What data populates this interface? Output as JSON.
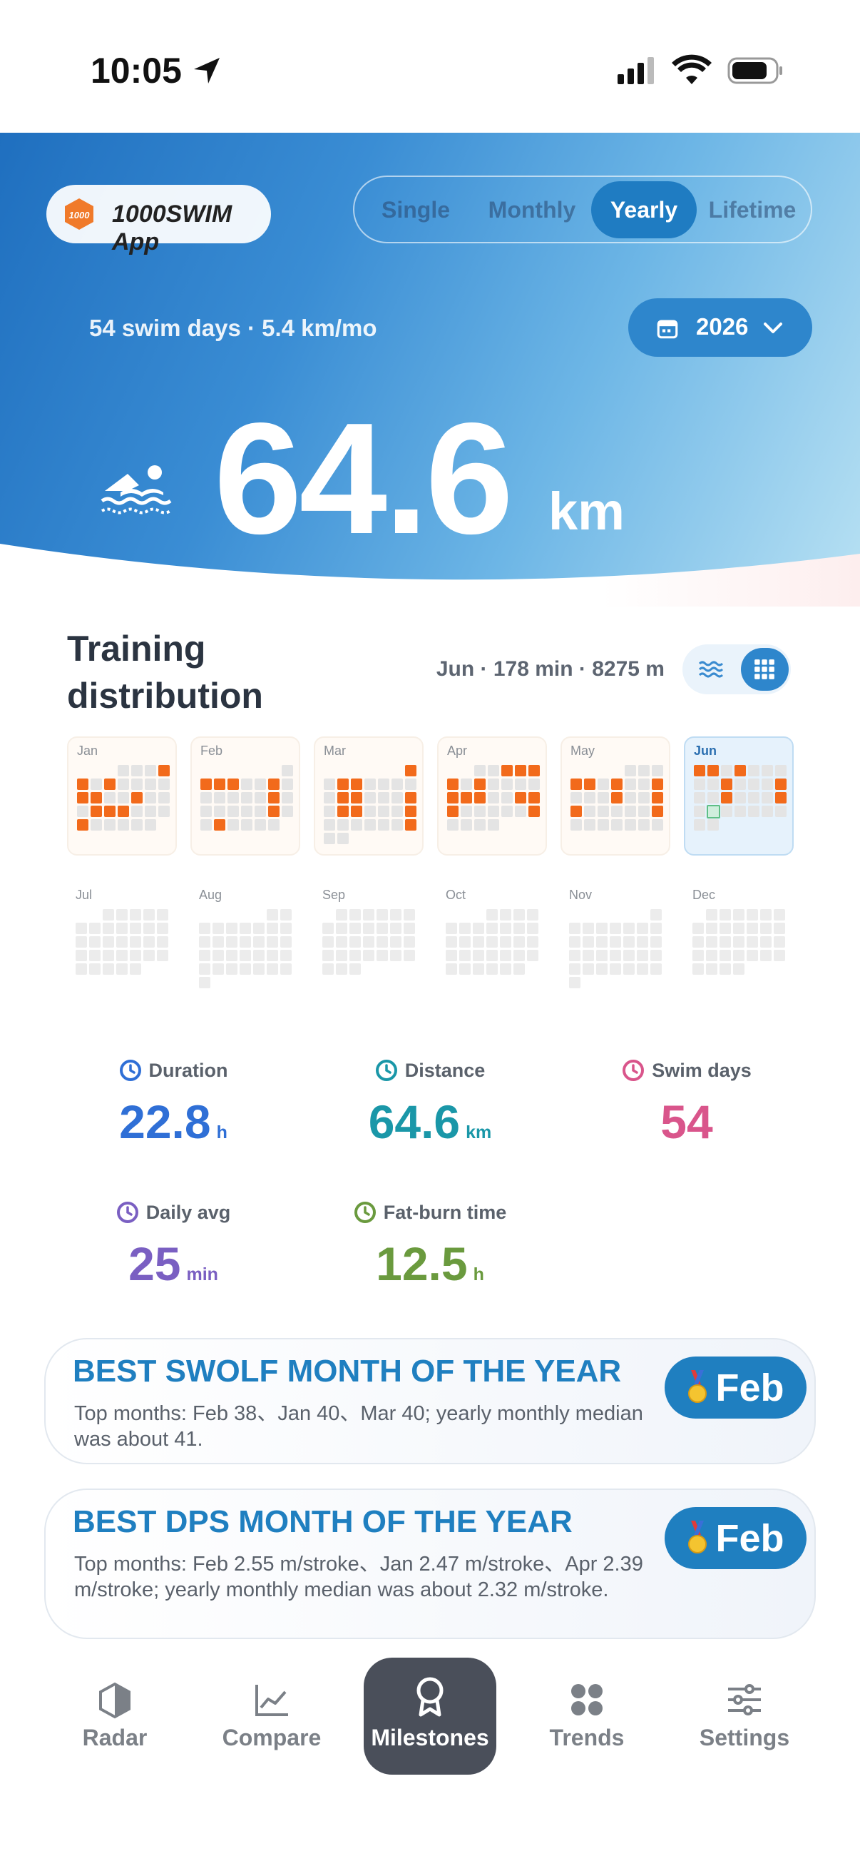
{
  "status_bar": {
    "time": "10:05"
  },
  "header": {
    "app_name": "1000SWIM App",
    "app_icon_text": "1000",
    "tabs": [
      "Single",
      "Monthly",
      "Yearly",
      "Lifetime"
    ],
    "active_tab": 2,
    "summary": "54 swim days · 5.4 km/mo",
    "year": "2026",
    "total_distance": 64.6,
    "total_unit": "km"
  },
  "training": {
    "title": "Training distribution",
    "detail": "Jun · 178 min · 8275 m",
    "current_month": 5,
    "months": [
      {
        "label": "Jan",
        "active": [
          4,
          5,
          7,
          12,
          13,
          16,
          20,
          21,
          22,
          26
        ]
      },
      {
        "label": "Feb",
        "active": [
          2,
          3,
          4,
          7,
          14,
          21,
          24
        ]
      },
      {
        "label": "Mar",
        "active": [
          1,
          3,
          4,
          10,
          11,
          15,
          17,
          18,
          22,
          29
        ]
      },
      {
        "label": "Apr",
        "active": [
          3,
          4,
          5,
          6,
          8,
          13,
          14,
          15,
          18,
          19,
          20,
          26
        ]
      },
      {
        "label": "May",
        "active": [
          4,
          5,
          7,
          10,
          14,
          17,
          18,
          24
        ]
      },
      {
        "label": "Jun",
        "active": [
          1,
          2,
          4,
          10,
          14,
          17,
          21
        ],
        "selected_day": 23
      },
      {
        "label": "Jul",
        "active": []
      },
      {
        "label": "Aug",
        "active": []
      },
      {
        "label": "Sep",
        "active": []
      },
      {
        "label": "Oct",
        "active": []
      },
      {
        "label": "Nov",
        "active": []
      },
      {
        "label": "Dec",
        "active": []
      }
    ]
  },
  "stats": [
    {
      "label": "Duration",
      "value": 22.8,
      "unit": "h",
      "color": "#2f6fd6"
    },
    {
      "label": "Distance",
      "value": 64.6,
      "unit": "km",
      "color": "#1a97a8"
    },
    {
      "label": "Swim days",
      "value": 54,
      "color": "#d9558b"
    },
    {
      "label": "Daily avg",
      "value": 25,
      "unit": "min",
      "color": "#7a5fc2"
    },
    {
      "label": "Fat-burn time",
      "value": 12.5,
      "unit": "h",
      "color": "#6a9a3e"
    }
  ],
  "highlights": [
    {
      "title": "BEST SWOLF MONTH OF THE YEAR",
      "text": "Top months: Feb 38、Jan 40、Mar 40; yearly monthly median was about 41.",
      "badge": "Feb"
    },
    {
      "title": "BEST DPS MONTH OF THE YEAR",
      "text": "Top months: Feb 2.55 m/stroke、Jan 2.47 m/stroke、Apr 2.39 m/stroke; yearly monthly median was about 2.32 m/stroke.",
      "badge": "Feb"
    }
  ],
  "nav": {
    "items": [
      "Radar",
      "Compare",
      "Milestones",
      "Trends",
      "Settings"
    ],
    "active": 2
  }
}
